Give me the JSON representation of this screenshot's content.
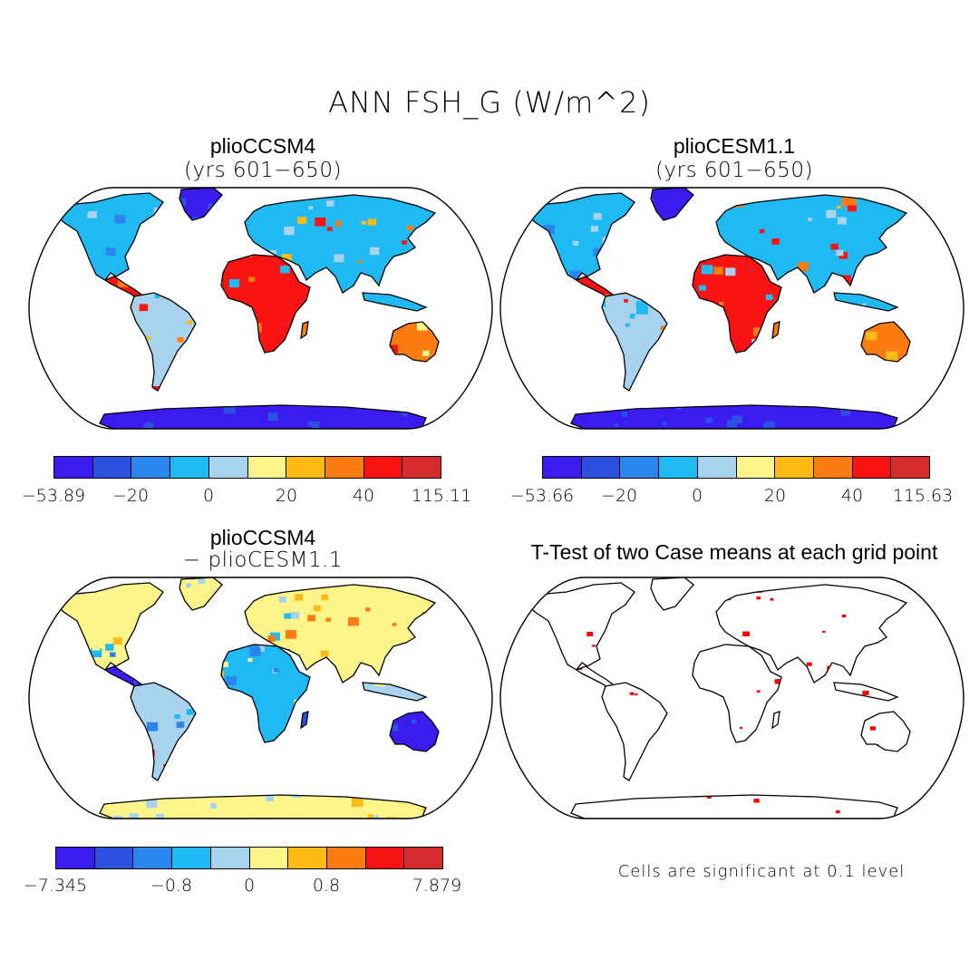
{
  "title": "ANN FSH_G (W/m^2)",
  "panels": [
    {
      "title": "plioCCSM4",
      "subtitle": "(yrs 601−650)"
    },
    {
      "title": "plioCESM1.1",
      "subtitle": "(yrs 601−650)"
    },
    {
      "title": "plioCCSM4",
      "subtitle": "− plioCESM1.1"
    },
    {
      "title": "T-Test of two Case means at each grid point",
      "subtitle": ""
    }
  ],
  "colorbars": [
    {
      "min_label": "−53.89",
      "labels": [
        "−20",
        "0",
        "20",
        "40"
      ],
      "max_label": "115.11"
    },
    {
      "min_label": "−53.66",
      "labels": [
        "−20",
        "0",
        "20",
        "40"
      ],
      "max_label": "115.63"
    },
    {
      "min_label": "−7.345",
      "labels": [
        "−0.8",
        "0",
        "0.8"
      ],
      "max_label": "7.879"
    }
  ],
  "palette": [
    "#3a1cf0",
    "#2e50e0",
    "#2a86ee",
    "#1fbaf3",
    "#a7d3ef",
    "#fdf58a",
    "#fdb914",
    "#fb7c10",
    "#fb1212",
    "#d42c2c"
  ],
  "significance_color": "#ff0000",
  "significance_note": "Cells are significant at 0.1 level"
}
